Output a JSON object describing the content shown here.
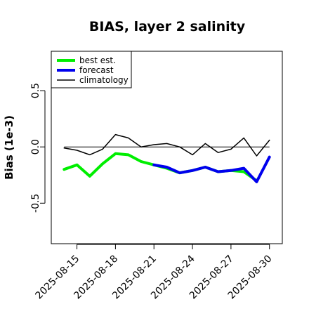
{
  "chart_data": {
    "type": "line",
    "title": "BIAS, layer 2 salinity",
    "xlabel": "",
    "ylabel": "Bias (1e-3)",
    "x_dates": [
      "2025-08-14",
      "2025-08-15",
      "2025-08-16",
      "2025-08-17",
      "2025-08-18",
      "2025-08-19",
      "2025-08-20",
      "2025-08-21",
      "2025-08-22",
      "2025-08-23",
      "2025-08-24",
      "2025-08-25",
      "2025-08-26",
      "2025-08-27",
      "2025-08-28",
      "2025-08-29",
      "2025-08-30"
    ],
    "xticks": [
      "2025-08-15",
      "2025-08-18",
      "2025-08-21",
      "2025-08-24",
      "2025-08-27",
      "2025-08-30"
    ],
    "highlight_tick": "2025-08-21",
    "highlight_color": "#228B22",
    "yticks": [
      "-0.5",
      "0.0",
      "0.5"
    ],
    "ylim": [
      -0.86,
      0.85
    ],
    "xlim": [
      "2025-08-13",
      "2025-08-31"
    ],
    "reference_line": 0,
    "grid": false,
    "legend_position": "top-left",
    "series": [
      {
        "name": "best est.",
        "color": "#00ee00",
        "width": 4,
        "x": [
          "2025-08-13",
          "2025-08-14",
          "2025-08-15",
          "2025-08-16",
          "2025-08-17",
          "2025-08-18",
          "2025-08-19",
          "2025-08-20",
          "2025-08-21",
          "2025-08-22",
          "2025-08-23",
          "2025-08-24",
          "2025-08-25",
          "2025-08-26",
          "2025-08-27",
          "2025-08-28",
          "2025-08-29",
          "2025-08-30"
        ],
        "values": [
          null,
          -0.2,
          -0.16,
          -0.26,
          -0.15,
          -0.06,
          -0.07,
          -0.13,
          -0.16,
          -0.19,
          -0.23,
          -0.21,
          -0.18,
          -0.22,
          -0.21,
          -0.22,
          -0.3,
          null
        ]
      },
      {
        "name": "forecast",
        "color": "#0000ee",
        "width": 4,
        "x": [
          "2025-08-21",
          "2025-08-22",
          "2025-08-23",
          "2025-08-24",
          "2025-08-25",
          "2025-08-26",
          "2025-08-27",
          "2025-08-28",
          "2025-08-29",
          "2025-08-30"
        ],
        "values": [
          -0.16,
          -0.18,
          -0.23,
          -0.21,
          -0.18,
          -0.22,
          -0.21,
          -0.19,
          -0.31,
          -0.09
        ]
      },
      {
        "name": "climatology",
        "color": "#000000",
        "width": 1.5,
        "x": [
          "2025-08-14",
          "2025-08-15",
          "2025-08-16",
          "2025-08-17",
          "2025-08-18",
          "2025-08-19",
          "2025-08-20",
          "2025-08-21",
          "2025-08-22",
          "2025-08-23",
          "2025-08-24",
          "2025-08-25",
          "2025-08-26",
          "2025-08-27",
          "2025-08-28",
          "2025-08-29",
          "2025-08-30"
        ],
        "values": [
          -0.01,
          -0.03,
          -0.07,
          -0.02,
          0.11,
          0.08,
          0.0,
          0.02,
          0.03,
          0.0,
          -0.07,
          0.03,
          -0.05,
          -0.02,
          0.08,
          -0.08,
          0.06
        ]
      }
    ]
  }
}
